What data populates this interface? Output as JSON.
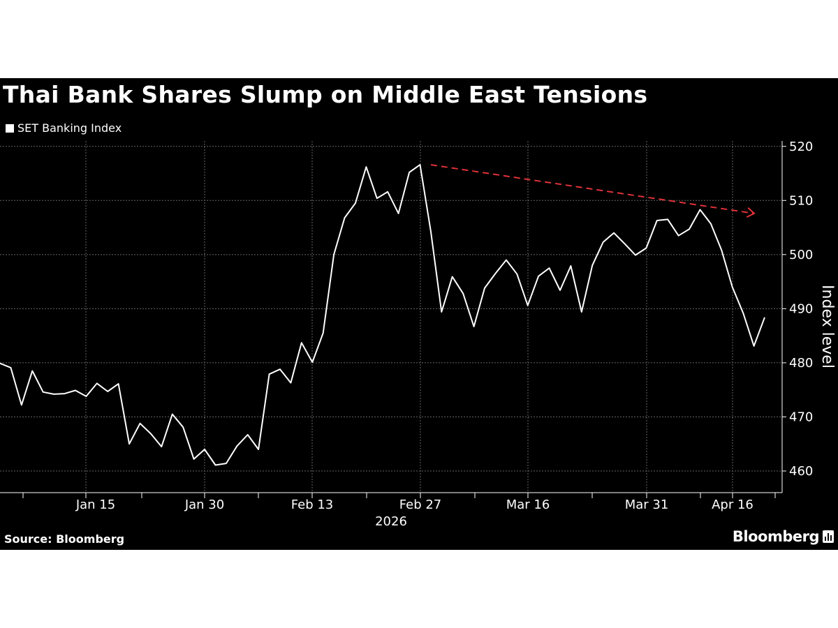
{
  "colors": {
    "background": "#000000",
    "line": "#ffffff",
    "trend": "#e0323a",
    "grid": "#666666"
  },
  "footer": {
    "source": "Source: Bloomberg",
    "brand": "Bloomberg",
    "brand_icon": "bar-chart-icon"
  },
  "chart_data": {
    "type": "line",
    "title": "Thai Bank Shares Slump on Middle East Tensions",
    "ylabel": "Index level",
    "year_label": "2026",
    "ylim": [
      456,
      521
    ],
    "y_ticks": [
      460,
      470,
      480,
      490,
      500,
      510,
      520
    ],
    "x_ticks": [
      "Jan 15",
      "Jan 30",
      "Feb 13",
      "Feb 27",
      "Mar 16",
      "Mar 31",
      "Apr 16"
    ],
    "legend_position": "top-left",
    "grid": true,
    "series": [
      {
        "name": "SET Banking Index",
        "values": [
          479.9,
          479.1,
          472.2,
          478.5,
          474.6,
          474.2,
          474.3,
          474.9,
          473.8,
          476.2,
          474.7,
          476.1,
          465.0,
          468.8,
          466.9,
          464.5,
          470.5,
          468.1,
          462.2,
          464.0,
          461.1,
          461.4,
          464.6,
          466.7,
          464.0,
          477.9,
          478.8,
          476.3,
          483.7,
          480.1,
          485.5,
          500.0,
          506.8,
          509.5,
          516.2,
          510.4,
          511.6,
          507.6,
          515.2,
          516.6,
          504.3,
          489.4,
          495.9,
          492.8,
          486.7,
          493.8,
          496.5,
          499.0,
          496.4,
          490.6,
          496.0,
          497.5,
          493.4,
          497.9,
          489.4,
          498.0,
          502.3,
          504.0,
          502.0,
          499.9,
          501.2,
          506.3,
          506.5,
          503.5,
          504.7,
          508.3,
          505.7,
          500.8,
          494.0,
          489.2,
          483.1,
          488.4
        ]
      }
    ],
    "trend_arrow": {
      "from": 516.6,
      "to": 507.6
    }
  }
}
